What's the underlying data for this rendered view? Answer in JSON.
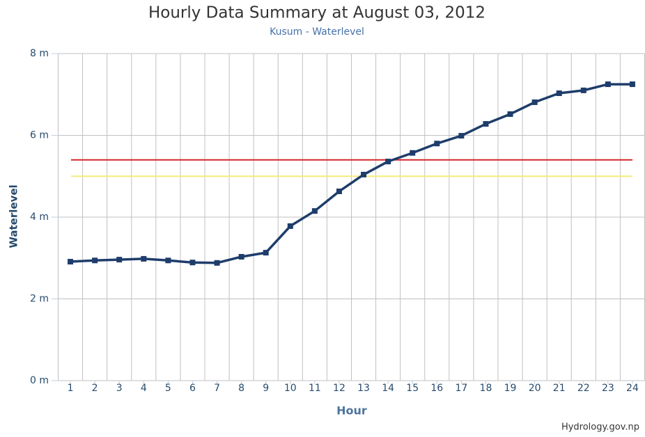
{
  "chart_data": {
    "type": "line",
    "title": "Hourly Data Summary at August 03, 2012",
    "subtitle": "Kusum - Waterlevel",
    "x_label": "Hour",
    "y_label": "Waterlevel",
    "credit": "Hydrology.gov.np",
    "categories": [
      "1",
      "2",
      "3",
      "4",
      "5",
      "6",
      "7",
      "8",
      "9",
      "10",
      "11",
      "12",
      "13",
      "14",
      "15",
      "16",
      "17",
      "18",
      "19",
      "20",
      "21",
      "22",
      "23",
      "24"
    ],
    "series": [
      {
        "name": "Waterlevel",
        "color": "#1e3d6b",
        "values": [
          2.91,
          2.94,
          2.96,
          2.98,
          2.94,
          2.89,
          2.88,
          3.03,
          3.13,
          3.78,
          4.15,
          4.63,
          5.04,
          5.36,
          5.57,
          5.8,
          5.99,
          6.28,
          6.52,
          6.81,
          7.03,
          7.1,
          7.25,
          7.25
        ]
      }
    ],
    "reference_lines": [
      {
        "value": 5.4,
        "color": "#d62728"
      },
      {
        "value": 5.0,
        "color": "#f2ee7a"
      }
    ],
    "ylim": [
      0,
      8
    ],
    "yticks": [
      {
        "value": 0,
        "label": "0 m"
      },
      {
        "value": 2,
        "label": "2 m"
      },
      {
        "value": 4,
        "label": "4 m"
      },
      {
        "value": 6,
        "label": "6 m"
      },
      {
        "value": 8,
        "label": "8 m"
      }
    ],
    "grid": true
  }
}
